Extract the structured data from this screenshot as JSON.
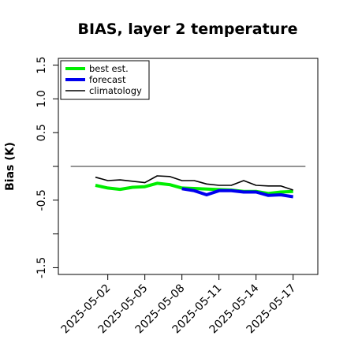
{
  "chart_data": {
    "type": "line",
    "title": "BIAS, layer 2 temperature",
    "xlabel": "",
    "ylabel": "Bias (K)",
    "ylim": [
      -1.6,
      1.6
    ],
    "yticks": [
      -1.5,
      -0.5,
      0.5,
      1.0,
      1.5
    ],
    "ytick_labels": [
      "-1.5",
      "-0.5",
      "0.5",
      "1.0",
      "1.5"
    ],
    "ytick_marks": [
      -1.5,
      -1.0,
      -0.5,
      0.0,
      0.5,
      1.0,
      1.5
    ],
    "xlim": [
      "2025-04-28",
      "2025-05-19"
    ],
    "xticks": [
      "2025-05-02",
      "2025-05-05",
      "2025-05-08",
      "2025-05-11",
      "2025-05-14",
      "2025-05-17"
    ],
    "highlight_tick": "2025-05-08",
    "highlight_color": "#228b22",
    "reference_line": {
      "y": 0.0,
      "from": "2025-04-29",
      "to": "2025-05-18",
      "color": "#555555"
    },
    "legend": {
      "position": "top-left"
    },
    "series": [
      {
        "name": "best est.",
        "color": "#00ee00",
        "width": 4,
        "x": [
          "2025-05-01",
          "2025-05-02",
          "2025-05-03",
          "2025-05-04",
          "2025-05-05",
          "2025-05-06",
          "2025-05-07",
          "2025-05-08",
          "2025-05-12",
          "2025-05-13",
          "2025-05-14",
          "2025-05-15",
          "2025-05-16",
          "2025-05-17"
        ],
        "values": [
          -0.28,
          -0.32,
          -0.34,
          -0.31,
          -0.3,
          -0.25,
          -0.27,
          -0.32,
          -0.35,
          -0.37,
          -0.37,
          -0.4,
          -0.38,
          -0.37
        ]
      },
      {
        "name": "forecast",
        "color": "#0000ee",
        "width": 4,
        "x": [
          "2025-05-08",
          "2025-05-09",
          "2025-05-10",
          "2025-05-11",
          "2025-05-12",
          "2025-05-13",
          "2025-05-14",
          "2025-05-15",
          "2025-05-16",
          "2025-05-17"
        ],
        "values": [
          -0.33,
          -0.36,
          -0.42,
          -0.36,
          -0.36,
          -0.38,
          -0.38,
          -0.43,
          -0.42,
          -0.45
        ]
      },
      {
        "name": "climatology",
        "color": "#000000",
        "width": 1.6,
        "x": [
          "2025-05-01",
          "2025-05-02",
          "2025-05-03",
          "2025-05-04",
          "2025-05-05",
          "2025-05-06",
          "2025-05-07",
          "2025-05-08",
          "2025-05-09",
          "2025-05-10",
          "2025-05-11",
          "2025-05-12",
          "2025-05-13",
          "2025-05-14",
          "2025-05-15",
          "2025-05-16",
          "2025-05-17"
        ],
        "values": [
          -0.16,
          -0.21,
          -0.2,
          -0.22,
          -0.24,
          -0.14,
          -0.15,
          -0.21,
          -0.21,
          -0.26,
          -0.28,
          -0.28,
          -0.21,
          -0.28,
          -0.29,
          -0.29,
          -0.35
        ]
      }
    ]
  }
}
